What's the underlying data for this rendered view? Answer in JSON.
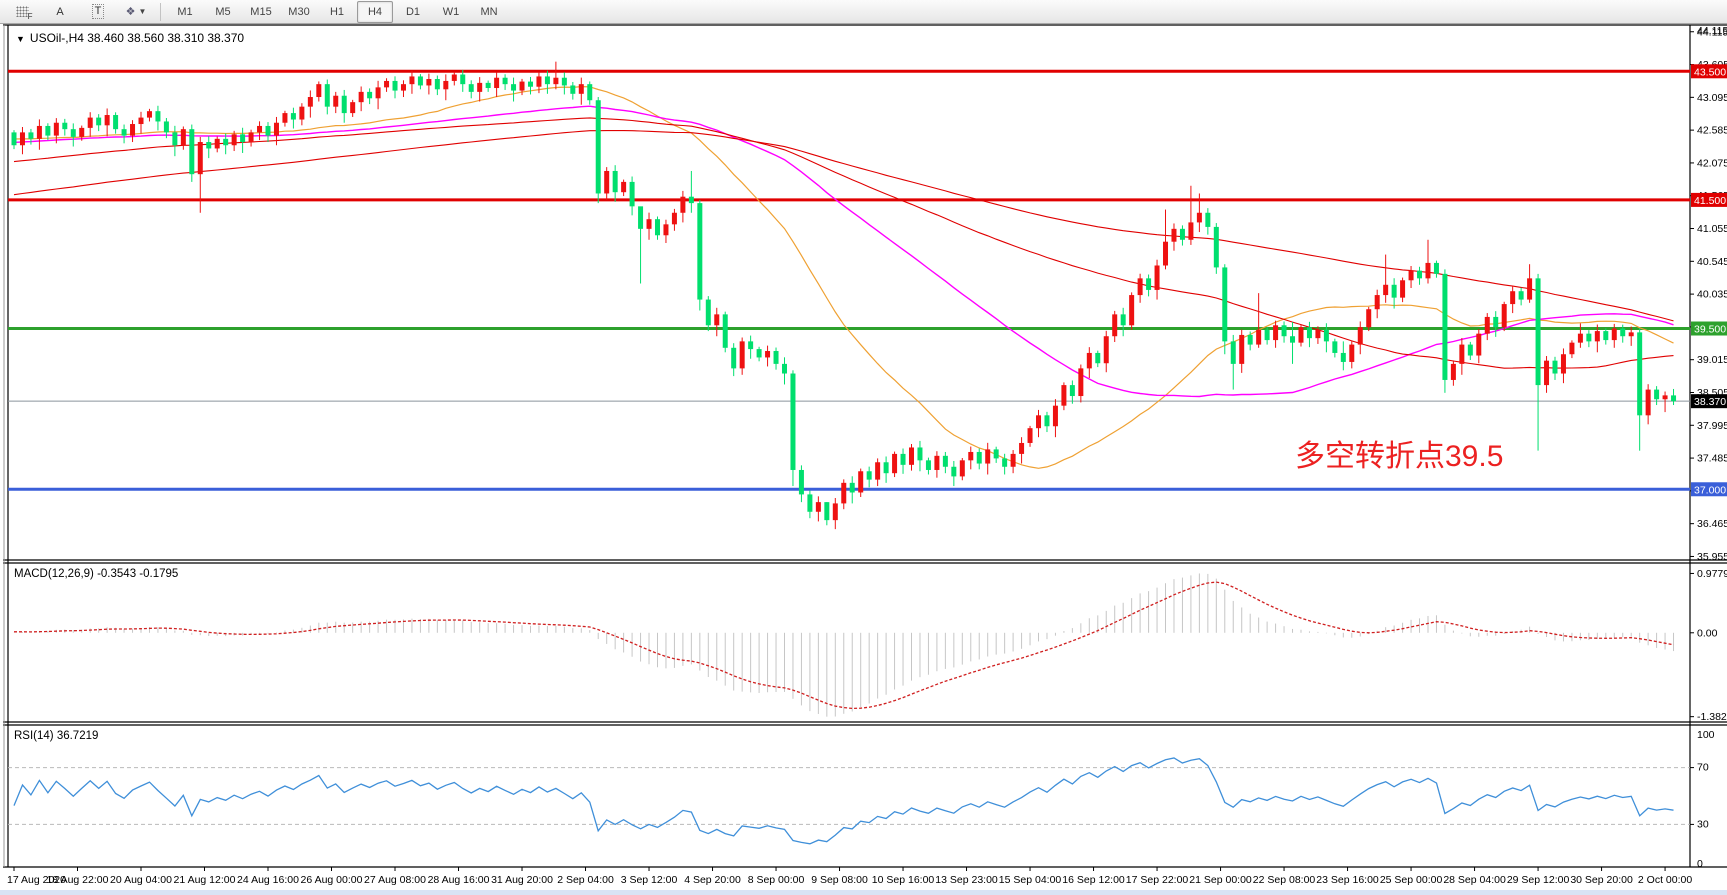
{
  "toolbar": {
    "tools": [
      {
        "name": "chart-grid",
        "label": "F"
      },
      {
        "name": "font",
        "label": "A"
      },
      {
        "name": "text-tool",
        "label": "T"
      },
      {
        "name": "shapes",
        "label": "❖"
      }
    ],
    "timeframes": [
      "M1",
      "M5",
      "M15",
      "M30",
      "H1",
      "H4",
      "D1",
      "W1",
      "MN"
    ],
    "active_timeframe": "H4"
  },
  "symbol_header": {
    "dropdown_icon": "▼",
    "text": "USOil-,H4  38.460 38.560 38.310 38.370"
  },
  "annotation": {
    "text": "多空转折点39.5",
    "color": "#ec2121"
  },
  "macd_panel": {
    "label": "MACD(12,26,9) -0.3543 -0.1795",
    "axis_labels": [
      "0.9779",
      "0.00",
      "-1.382"
    ]
  },
  "rsi_panel": {
    "label": "RSI(14) 36.7219",
    "axis_labels": [
      "100",
      "70",
      "30",
      "0"
    ]
  },
  "price_axis": {
    "ticks": [
      "44.115",
      "43.605",
      "43.095",
      "42.585",
      "42.075",
      "41.565",
      "41.055",
      "40.545",
      "40.035",
      "39.525",
      "39.015",
      "38.505",
      "37.995",
      "37.485",
      "36.975",
      "36.465",
      "35.955"
    ],
    "badges": [
      {
        "label": "43.500",
        "price": 43.5,
        "bg": "#e00000"
      },
      {
        "label": "41.500",
        "price": 41.5,
        "bg": "#e00000"
      },
      {
        "label": "39.500",
        "price": 39.5,
        "bg": "#2da12d"
      },
      {
        "label": "38.370",
        "price": 38.37,
        "bg": "#000000"
      },
      {
        "label": "37.000",
        "price": 37.0,
        "bg": "#3a5fd9"
      }
    ]
  },
  "date_axis": {
    "labels": [
      "17 Aug 2020",
      "18 Aug 22:00",
      "20 Aug 04:00",
      "21 Aug 12:00",
      "24 Aug 16:00",
      "26 Aug 00:00",
      "27 Aug 08:00",
      "28 Aug 16:00",
      "31 Aug 20:00",
      "2 Sep 04:00",
      "3 Sep 12:00",
      "4 Sep 20:00",
      "8 Sep 00:00",
      "9 Sep 08:00",
      "10 Sep 16:00",
      "13 Sep 23:00",
      "15 Sep 04:00",
      "16 Sep 12:00",
      "17 Sep 22:00",
      "21 Sep 00:00",
      "22 Sep 08:00",
      "23 Sep 16:00",
      "25 Sep 00:00",
      "28 Sep 04:00",
      "29 Sep 12:00",
      "30 Sep 20:00",
      "2 Oct 00:00"
    ]
  },
  "chart_data": {
    "type": "candlestick",
    "symbol": "USOil",
    "timeframe": "H4",
    "ylim": [
      35.9,
      44.22
    ],
    "up_color": "#ee1111",
    "down_color": "#00df6e",
    "open_first": 42.55,
    "closes": [
      42.35,
      42.55,
      42.45,
      42.65,
      42.5,
      42.7,
      42.6,
      42.48,
      42.62,
      42.78,
      42.66,
      42.82,
      42.6,
      42.5,
      42.68,
      42.78,
      42.88,
      42.72,
      42.55,
      42.35,
      42.6,
      41.9,
      42.4,
      42.3,
      42.45,
      42.35,
      42.52,
      42.4,
      42.55,
      42.65,
      42.5,
      42.7,
      42.85,
      42.75,
      42.95,
      43.1,
      43.3,
      42.95,
      43.12,
      42.85,
      43.02,
      43.18,
      43.08,
      43.25,
      43.35,
      43.2,
      43.3,
      43.42,
      43.28,
      43.38,
      43.22,
      43.35,
      43.45,
      43.3,
      43.18,
      43.32,
      43.24,
      43.4,
      43.3,
      43.2,
      43.34,
      43.26,
      43.42,
      43.3,
      43.4,
      43.28,
      43.15,
      43.3,
      43.05,
      41.6,
      41.95,
      41.62,
      41.78,
      41.4,
      41.05,
      41.2,
      40.95,
      41.12,
      41.3,
      41.55,
      41.45,
      39.95,
      39.55,
      39.72,
      39.2,
      38.88,
      39.3,
      39.18,
      39.05,
      39.15,
      38.95,
      38.8,
      37.3,
      36.92,
      36.65,
      36.8,
      36.52,
      36.78,
      37.1,
      36.95,
      37.28,
      37.15,
      37.42,
      37.25,
      37.55,
      37.38,
      37.65,
      37.45,
      37.3,
      37.52,
      37.35,
      37.2,
      37.45,
      37.58,
      37.4,
      37.62,
      37.48,
      37.35,
      37.55,
      37.72,
      37.95,
      38.15,
      37.98,
      38.3,
      38.62,
      38.45,
      38.88,
      39.12,
      38.96,
      39.38,
      39.72,
      39.55,
      40.02,
      40.28,
      40.1,
      40.48,
      40.85,
      41.05,
      40.88,
      41.15,
      41.3,
      41.08,
      40.45,
      39.3,
      38.95,
      39.4,
      39.25,
      39.48,
      39.32,
      39.55,
      39.38,
      39.28,
      39.52,
      39.35,
      39.48,
      39.3,
      39.12,
      38.98,
      39.25,
      39.52,
      39.8,
      40.02,
      40.18,
      39.98,
      40.25,
      40.4,
      40.28,
      40.52,
      40.35,
      38.7,
      38.95,
      39.25,
      39.08,
      39.42,
      39.68,
      39.52,
      39.88,
      40.08,
      39.95,
      40.28,
      38.62,
      39.0,
      38.8,
      39.1,
      39.28,
      39.42,
      39.3,
      39.46,
      39.32,
      39.5,
      39.38,
      39.44,
      38.15,
      38.55,
      38.4,
      38.46,
      38.37
    ],
    "wick_pattern": [
      0.06,
      0.14,
      0.09,
      0.17,
      0.07,
      0.12,
      0.1,
      0.15
    ],
    "wick_overrides": {
      "22": [
        42.48,
        41.3
      ],
      "64": [
        43.65,
        43.22
      ],
      "69": [
        43.1,
        41.45
      ],
      "74": [
        41.25,
        40.2
      ],
      "80": [
        41.95,
        41.3
      ],
      "81": [
        41.5,
        39.78
      ],
      "92": [
        38.85,
        37.05
      ],
      "96": [
        36.8,
        36.44
      ],
      "136": [
        41.35,
        40.42
      ],
      "139": [
        41.72,
        40.8
      ],
      "140": [
        41.6,
        41.0
      ],
      "143": [
        40.5,
        39.1
      ],
      "144": [
        39.4,
        38.55
      ],
      "147": [
        40.05,
        39.2
      ],
      "151": [
        39.6,
        38.95
      ],
      "157": [
        39.3,
        38.85
      ],
      "162": [
        40.65,
        39.9
      ],
      "167": [
        40.88,
        40.2
      ],
      "169": [
        40.42,
        38.5
      ],
      "179": [
        40.5,
        39.9
      ],
      "180": [
        40.35,
        37.6
      ],
      "185": [
        39.58,
        39.2
      ],
      "192": [
        39.5,
        37.6
      ],
      "195": [
        38.52,
        38.2
      ],
      "196": [
        38.56,
        38.31
      ]
    },
    "pre_history": {
      "ramp_from": 39.8,
      "ramp_to": 42.5,
      "ramp_n": 110,
      "flat_n": 40,
      "flat": 42.45
    },
    "hlines": [
      {
        "price": 43.5,
        "color": "#e00000",
        "width": 3
      },
      {
        "price": 41.5,
        "color": "#e00000",
        "width": 3
      },
      {
        "price": 39.5,
        "color": "#2da12d",
        "width": 3
      },
      {
        "price": 38.37,
        "color": "#8a949c",
        "width": 1
      },
      {
        "price": 37.0,
        "color": "#3a5fd9",
        "width": 3
      }
    ],
    "moving_averages": [
      {
        "name": "ma-fast",
        "period": 30,
        "color": "#efa133",
        "width": 1.2
      },
      {
        "name": "ma-medium",
        "period": 60,
        "color": "#ff00ff",
        "width": 1.4
      },
      {
        "name": "ma-slow-1",
        "period": 96,
        "color": "#e00000",
        "width": 1.1
      },
      {
        "name": "ma-slow-2",
        "period": 144,
        "color": "#e00000",
        "width": 1.1
      }
    ],
    "indicators": {
      "macd": {
        "fast": 12,
        "slow": 26,
        "signal": 9,
        "current_macd": -0.3543,
        "current_signal": -0.1795,
        "range": [
          -1.382,
          0.9779
        ],
        "hist_color": "#c6c6c6",
        "signal_color": "#d02020"
      },
      "rsi": {
        "period": 14,
        "current": 36.7219,
        "levels": [
          70,
          30
        ],
        "line_color": "#3f8fd9",
        "level_color": "#b9b9b9"
      }
    }
  }
}
